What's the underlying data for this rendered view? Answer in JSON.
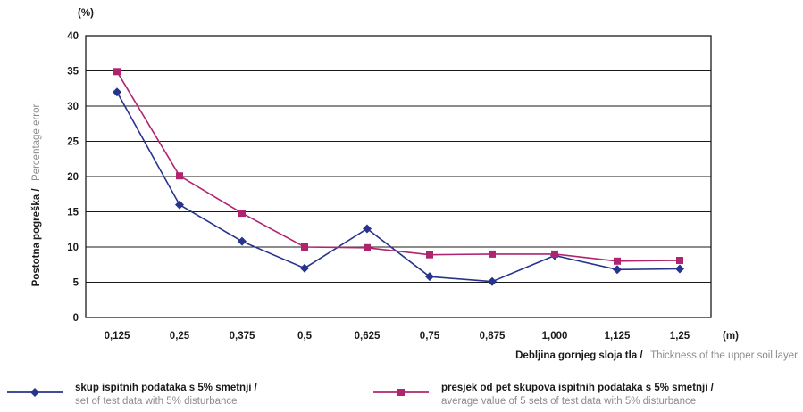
{
  "chart_data": {
    "type": "line",
    "categories": [
      "0,125",
      "0,25",
      "0,375",
      "0,5",
      "0,625",
      "0,75",
      "0,875",
      "1,000",
      "1,125",
      "1,25"
    ],
    "y_unit": "(%)",
    "x_unit": "(m)",
    "ylim": [
      0,
      40
    ],
    "yticks": [
      0,
      5,
      10,
      15,
      20,
      25,
      30,
      35,
      40
    ],
    "grid": "horizontal",
    "legend_position": "bottom",
    "ylabel_primary": "Postotna pogreška /",
    "ylabel_secondary": "Percentage error",
    "xlabel_primary": "Debljina gornjeg sloja tla /",
    "xlabel_secondary": "Thickness of the upper soil layer",
    "series": [
      {
        "name": "skup ispitnih podataka s 5% smetnji /",
        "name_secondary": "set of test data with 5% disturbance",
        "marker": "diamond",
        "color": "#27348b",
        "values": [
          32.0,
          16.0,
          10.8,
          7.0,
          12.6,
          5.8,
          5.1,
          8.8,
          6.8,
          6.9
        ]
      },
      {
        "name": "presjek od pet skupova ispitnih podataka s 5% smetnji /",
        "name_secondary": "average value of 5 sets of test data with 5% disturbance",
        "marker": "square",
        "color": "#b0246f",
        "values": [
          34.9,
          20.1,
          14.8,
          10.0,
          9.9,
          8.9,
          9.0,
          9.0,
          8.0,
          8.1
        ]
      }
    ]
  }
}
